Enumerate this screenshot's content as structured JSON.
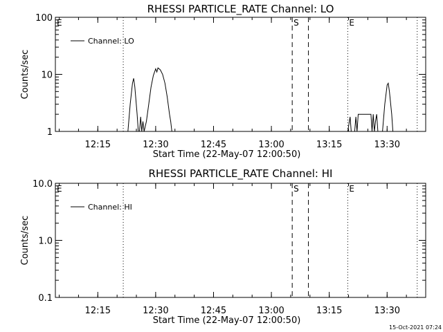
{
  "footer": {
    "timestamp": "15-Oct-2021 07:24"
  },
  "chart_data": [
    {
      "type": "line",
      "title": "RHESSI PARTICLE_RATE Channel: LO",
      "xlabel": "Start Time (22-May-07 12:00:50)",
      "ylabel": "Counts/sec",
      "y_scale": "log",
      "xlim": [
        12.0667,
        13.6667
      ],
      "ylim": [
        1,
        100
      ],
      "x_ticks": [
        {
          "value": 12.25,
          "label": "12:15"
        },
        {
          "value": 12.5,
          "label": "12:30"
        },
        {
          "value": 12.75,
          "label": "12:45"
        },
        {
          "value": 13.0,
          "label": "13:00"
        },
        {
          "value": 13.25,
          "label": "13:15"
        },
        {
          "value": 13.5,
          "label": "13:30"
        }
      ],
      "y_ticks": [
        {
          "value": 1,
          "label": "1"
        },
        {
          "value": 10,
          "label": "10"
        },
        {
          "value": 100,
          "label": "100"
        }
      ],
      "legend": {
        "placement": "top-left",
        "entries": [
          "Channel: LO"
        ]
      },
      "markers": [
        {
          "x": 12.0667,
          "label": "E",
          "style": "dotted"
        },
        {
          "x": 12.36,
          "label": "",
          "style": "dotted"
        },
        {
          "x": 13.09,
          "label": "S",
          "style": "dashed"
        },
        {
          "x": 13.16,
          "label": "",
          "style": "dashed"
        },
        {
          "x": 13.33,
          "label": "E",
          "style": "dotted"
        },
        {
          "x": 13.63,
          "label": "",
          "style": "dotted"
        }
      ],
      "series": [
        {
          "points": [
            [
              12.0667,
              1
            ],
            [
              12.38,
              1
            ],
            [
              12.39,
              3
            ],
            [
              12.4,
              7
            ],
            [
              12.405,
              8.5
            ],
            [
              12.41,
              6
            ],
            [
              12.42,
              2
            ],
            [
              12.425,
              1
            ],
            [
              12.43,
              1
            ],
            [
              12.435,
              1.8
            ],
            [
              12.44,
              1
            ],
            [
              12.445,
              1.5
            ],
            [
              12.45,
              1
            ],
            [
              12.46,
              1.5
            ],
            [
              12.47,
              3
            ],
            [
              12.48,
              6
            ],
            [
              12.49,
              9.5
            ],
            [
              12.5,
              12.5
            ],
            [
              12.505,
              11
            ],
            [
              12.51,
              13
            ],
            [
              12.52,
              12
            ],
            [
              12.53,
              10
            ],
            [
              12.54,
              7
            ],
            [
              12.55,
              4
            ],
            [
              12.56,
              2
            ],
            [
              12.565,
              1.5
            ],
            [
              12.57,
              1
            ],
            [
              13.33,
              1
            ],
            [
              13.34,
              1.8
            ],
            [
              13.345,
              1
            ],
            [
              13.36,
              1
            ],
            [
              13.365,
              1.8
            ],
            [
              13.37,
              1
            ],
            [
              13.375,
              2
            ],
            [
              13.43,
              2
            ],
            [
              13.435,
              1
            ],
            [
              13.44,
              2
            ],
            [
              13.445,
              1
            ],
            [
              13.45,
              1.5
            ],
            [
              13.455,
              2
            ],
            [
              13.46,
              1
            ],
            [
              13.48,
              1
            ],
            [
              13.49,
              3
            ],
            [
              13.5,
              6.5
            ],
            [
              13.505,
              7
            ],
            [
              13.51,
              5
            ],
            [
              13.52,
              2
            ],
            [
              13.525,
              1
            ],
            [
              13.6667,
              1
            ]
          ]
        }
      ]
    },
    {
      "type": "line",
      "title": "RHESSI PARTICLE_RATE Channel: HI",
      "xlabel": "Start Time (22-May-07 12:00:50)",
      "ylabel": "Counts/sec",
      "y_scale": "log",
      "xlim": [
        12.0667,
        13.6667
      ],
      "ylim": [
        0.1,
        10
      ],
      "x_ticks": [
        {
          "value": 12.25,
          "label": "12:15"
        },
        {
          "value": 12.5,
          "label": "12:30"
        },
        {
          "value": 12.75,
          "label": "12:45"
        },
        {
          "value": 13.0,
          "label": "13:00"
        },
        {
          "value": 13.25,
          "label": "13:15"
        },
        {
          "value": 13.5,
          "label": "13:30"
        }
      ],
      "y_ticks": [
        {
          "value": 0.1,
          "label": "0.1"
        },
        {
          "value": 1,
          "label": "1.0"
        },
        {
          "value": 10,
          "label": "10.0"
        }
      ],
      "legend": {
        "placement": "top-left",
        "entries": [
          "Channel: HI"
        ]
      },
      "markers": [
        {
          "x": 12.0667,
          "label": "E",
          "style": "dotted"
        },
        {
          "x": 12.36,
          "label": "",
          "style": "dotted"
        },
        {
          "x": 13.09,
          "label": "S",
          "style": "dashed"
        },
        {
          "x": 13.16,
          "label": "",
          "style": "dashed"
        },
        {
          "x": 13.33,
          "label": "E",
          "style": "dotted"
        },
        {
          "x": 13.63,
          "label": "",
          "style": "dotted"
        }
      ],
      "series": [
        {
          "points": []
        }
      ]
    }
  ]
}
